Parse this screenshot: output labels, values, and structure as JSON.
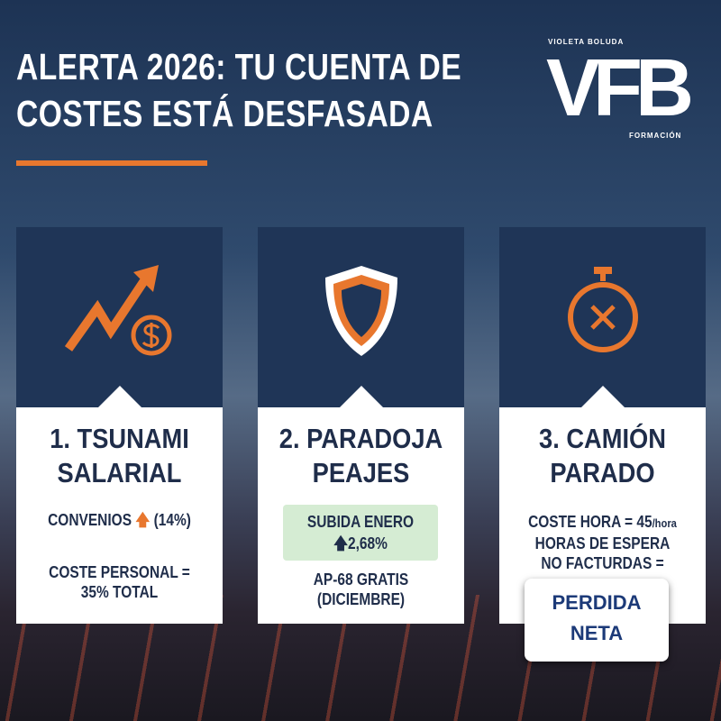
{
  "title": {
    "line1": "ALERTA 2026: TU CUENTA DE",
    "line2": "COSTES ESTÁ DESFASADA"
  },
  "logo": {
    "top": "VIOLETA BOLUDA",
    "mark": "VFB",
    "bottom": "FORMACIÓN"
  },
  "colors": {
    "accent": "#e8772e",
    "navy": "#1f3557",
    "green": "#d5ecd3"
  },
  "cards": [
    {
      "icon": "trending-up-dollar-icon",
      "title1": "1. TSUNAMI",
      "title2": "SALARIAL",
      "line1": "CONVENIOS",
      "arrow": "arrow-up-icon",
      "line1b": "(14%)",
      "line2": "COSTE PERSONAL =",
      "line3": "35% TOTAL"
    },
    {
      "icon": "shield-icon",
      "title1": "2. PARADOJA",
      "title2": "PEAJES",
      "box1": "SUBIDA ENERO",
      "box2": "2,68%",
      "line2": "AP-68 GRATIS",
      "line3": "(DICIEMBRE)"
    },
    {
      "icon": "stopwatch-icon",
      "title1": "3. CAMIÓN",
      "title2": "PARADO",
      "line1": "COSTE HORA = 45",
      "line1unit": "/hora",
      "line2": "HORAS DE ESPERA",
      "line3": "NO FACTURDAS =",
      "badge1": "PERDIDA",
      "badge2": "NETA"
    }
  ]
}
